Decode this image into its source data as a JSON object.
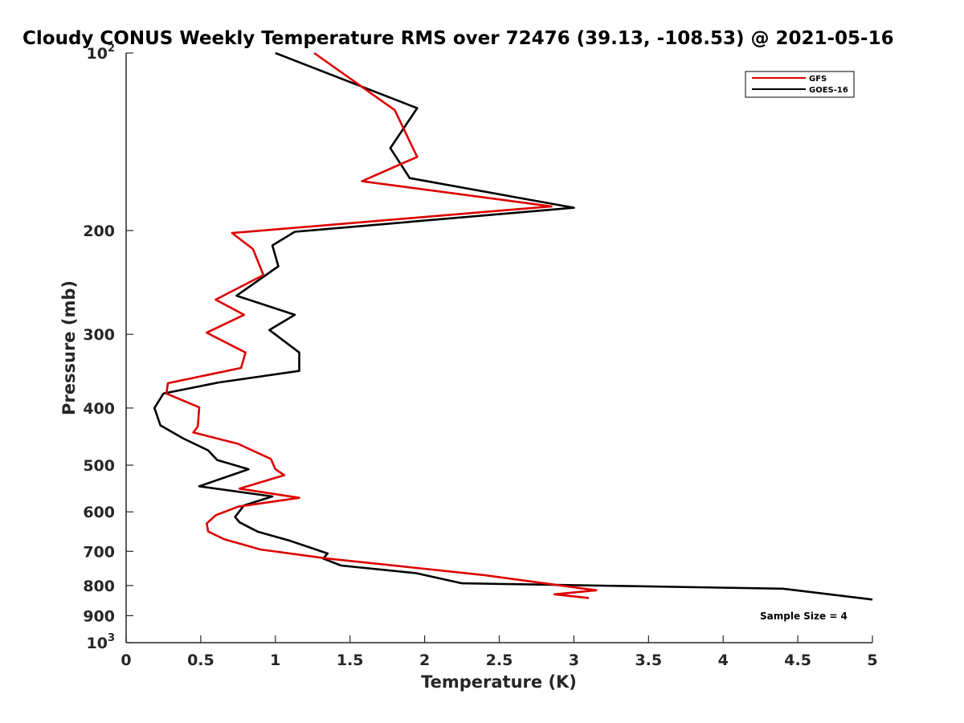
{
  "chart_data": {
    "type": "line",
    "title": "Cloudy CONUS Weekly Temperature RMS over 72476 (39.13, -108.53) @ 2021-05-16",
    "xlabel": "Temperature (K)",
    "ylabel": "Pressure (mb)",
    "xlim": [
      0,
      5
    ],
    "ylim": [
      100,
      1000
    ],
    "y_scale": "log",
    "y_reversed": true,
    "x_ticks": [
      0,
      0.5,
      1,
      1.5,
      2,
      2.5,
      3,
      3.5,
      4,
      4.5,
      5
    ],
    "x_tick_labels": [
      "0",
      "0.5",
      "1",
      "1.5",
      "2",
      "2.5",
      "3",
      "3.5",
      "4",
      "4.5",
      "5"
    ],
    "y_ticks": [
      {
        "value": 100,
        "base": "10",
        "exp": "2"
      },
      {
        "value": 200,
        "label": "200"
      },
      {
        "value": 300,
        "label": "300"
      },
      {
        "value": 400,
        "label": "400"
      },
      {
        "value": 500,
        "label": "500"
      },
      {
        "value": 600,
        "label": "600"
      },
      {
        "value": 700,
        "label": "700"
      },
      {
        "value": 800,
        "label": "800"
      },
      {
        "value": 900,
        "label": "900"
      },
      {
        "value": 1000,
        "base": "10",
        "exp": "3"
      }
    ],
    "grid": false,
    "legend_position": "top-right",
    "series": [
      {
        "name": "GFS",
        "color": "#dd0000",
        "x": [
          1.26,
          1.8,
          1.95,
          1.58,
          2.85,
          0.71,
          0.85,
          0.92,
          0.6,
          0.79,
          0.54,
          0.8,
          0.77,
          0.28,
          0.27,
          0.49,
          0.48,
          0.45,
          0.75,
          0.97,
          1.0,
          1.06,
          0.76,
          1.16,
          0.75,
          0.6,
          0.54,
          0.55,
          0.66,
          0.9,
          1.35,
          2.4,
          3.15,
          2.87,
          3.1
        ],
        "y": [
          100,
          125,
          150,
          165,
          182,
          202,
          215,
          238,
          262,
          278,
          298,
          322,
          342,
          363,
          378,
          399,
          430,
          440,
          460,
          488,
          508,
          520,
          548,
          568,
          588,
          608,
          628,
          648,
          668,
          695,
          720,
          768,
          815,
          828,
          840
        ]
      },
      {
        "name": "GOES-16",
        "color": "#000000",
        "x": [
          1.0,
          1.95,
          1.77,
          1.9,
          3.0,
          1.13,
          0.98,
          1.02,
          0.74,
          1.13,
          0.96,
          1.16,
          1.16,
          0.62,
          0.25,
          0.19,
          0.23,
          0.38,
          0.55,
          0.61,
          0.82,
          0.49,
          0.98,
          0.79,
          0.73,
          0.76,
          0.88,
          1.1,
          1.35,
          1.32,
          1.44,
          1.94,
          2.25,
          4.4,
          5.0
        ],
        "y": [
          100,
          124,
          145,
          163,
          183,
          201,
          212,
          230,
          258,
          278,
          295,
          322,
          346,
          362,
          378,
          400,
          428,
          450,
          472,
          490,
          508,
          543,
          565,
          585,
          612,
          625,
          648,
          672,
          706,
          720,
          740,
          762,
          793,
          810,
          845
        ]
      }
    ],
    "annotations": [
      "Sample Size = 4"
    ]
  }
}
